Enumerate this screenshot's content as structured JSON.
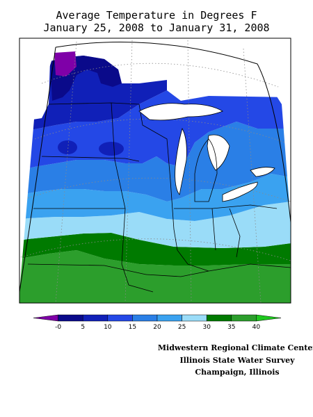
{
  "title": {
    "line1": "Average Temperature in Degrees F",
    "line2": "January 25, 2008 to January 31, 2008"
  },
  "legend": {
    "ticks": [
      "-0",
      "5",
      "10",
      "15",
      "20",
      "25",
      "30",
      "35",
      "40"
    ],
    "colors": [
      "#7f00a8",
      "#0a0a8a",
      "#1020b8",
      "#2448e6",
      "#2a7fe6",
      "#3aa2f0",
      "#9adcf8",
      "#007a00",
      "#2c9e2c",
      "#1ec81e"
    ]
  },
  "credits": {
    "line1": "Midwestern Regional Climate Center",
    "line2": "Illinois State Water Survey",
    "line3": "Champaign, Illinois"
  }
}
